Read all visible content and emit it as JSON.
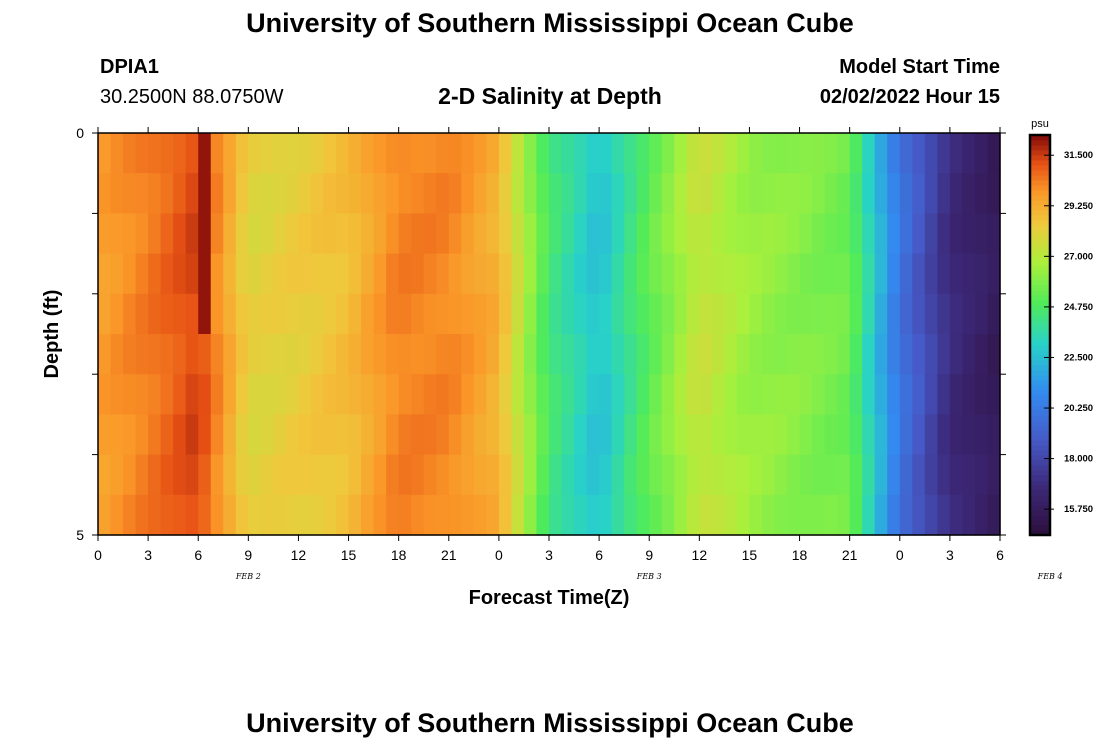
{
  "header": {
    "title": "University of Southern Mississippi Ocean Cube",
    "station": "DPIA1",
    "coords": "30.2500N  88.0750W",
    "subtitle": "2-D Salinity at Depth",
    "model_start_label": "Model Start Time",
    "model_start_value": "02/02/2022 Hour 15"
  },
  "footer": {
    "title": "University of Southern Mississippi Ocean Cube"
  },
  "chart_data": {
    "type": "heatmap",
    "title": "2-D Salinity at Depth",
    "xlabel": "Forecast Time(Z)",
    "ylabel": "Depth (ft)",
    "x_tick_labels": [
      "0",
      "3",
      "6",
      "9",
      "12",
      "15",
      "18",
      "21",
      "0",
      "3",
      "6",
      "9",
      "12",
      "15",
      "18",
      "21",
      "0",
      "3",
      "6"
    ],
    "x_date_labels": [
      {
        "label": "FEB 2",
        "hour": 24
      },
      {
        "label": "FEB 3",
        "hour": 72
      },
      {
        "label": "FEB 4",
        "hour": 120
      }
    ],
    "x_range_hours": [
      0,
      54
    ],
    "y_tick_labels": [
      "0",
      "5"
    ],
    "ylim": [
      5,
      0
    ],
    "colorbar": {
      "unit": "psu",
      "min": 14.6,
      "max": 32.4,
      "tick_labels": [
        "31.500",
        "29.250",
        "27.000",
        "24.750",
        "22.500",
        "20.250",
        "18.000",
        "15.750"
      ],
      "tick_values": [
        31.5,
        29.25,
        27.0,
        24.75,
        22.5,
        20.25,
        18.0,
        15.75
      ]
    },
    "depth_rows_ft": [
      0.25,
      0.75,
      1.25,
      1.75,
      2.25,
      2.75,
      3.25,
      3.75,
      4.25,
      4.75
    ],
    "time_hours": [
      0,
      3,
      6,
      9,
      12,
      15,
      18,
      21,
      24,
      27,
      30,
      33,
      36,
      39,
      42,
      45,
      48,
      51,
      54
    ],
    "salinity_profile_psu": [
      29.6,
      30.4,
      31.4,
      28.0,
      28.3,
      28.8,
      30.3,
      30.2,
      29.1,
      24.5,
      22.6,
      25.2,
      27.4,
      26.4,
      26.0,
      25.5,
      20.0,
      16.8,
      15.6
    ],
    "salinity_max_psu": 32.2
  }
}
